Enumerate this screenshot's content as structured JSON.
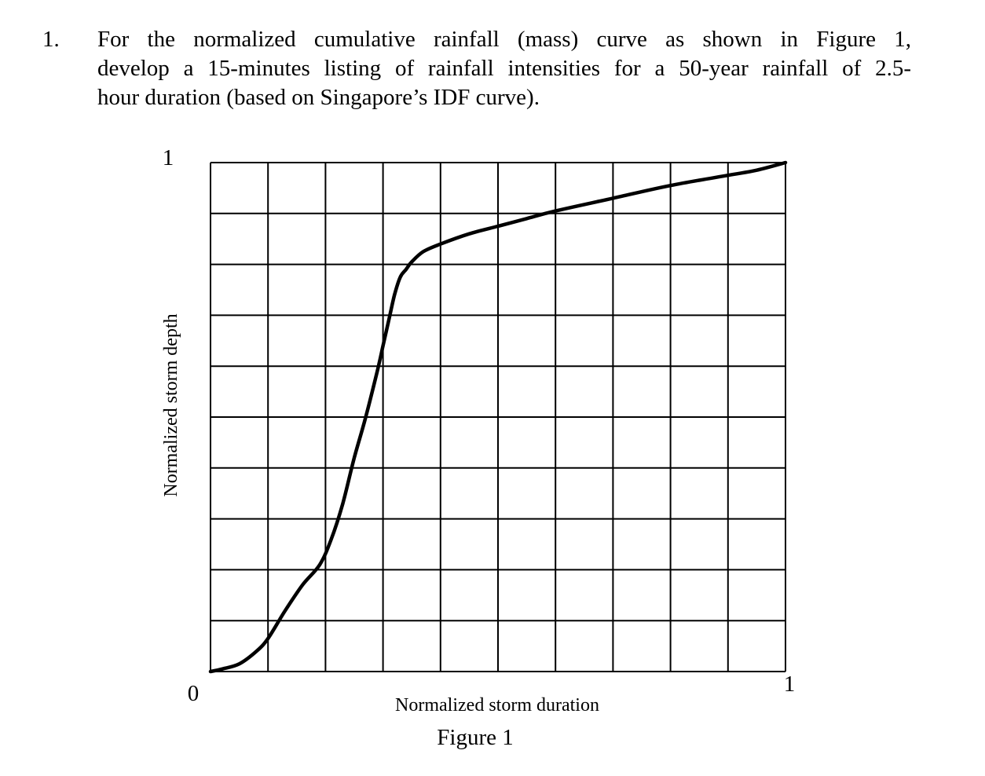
{
  "question": {
    "number": "1.",
    "lines": [
      "For the normalized cumulative rainfall (mass) curve as shown in Figure 1,",
      "develop a 15-minutes listing of rainfall intensities for a 50-year rainfall of 2.5-",
      "hour duration (based on Singapore’s IDF curve)."
    ]
  },
  "figure": {
    "caption": "Figure 1"
  },
  "chart_data": {
    "type": "line",
    "title": "",
    "xlabel": "Normalized storm duration",
    "ylabel": "Normalized storm depth",
    "xlim": [
      0,
      1
    ],
    "ylim": [
      0,
      1
    ],
    "grid": true,
    "grid_divisions": {
      "x": 10,
      "y": 10
    },
    "tick_labels": {
      "x_min": "0",
      "x_max": "1",
      "y_max": "1"
    },
    "series": [
      {
        "x": [
          0,
          0.02,
          0.05,
          0.08,
          0.1,
          0.13,
          0.16,
          0.19,
          0.21,
          0.23,
          0.25,
          0.27,
          0.29,
          0.3,
          0.31,
          0.32,
          0.33,
          0.34,
          0.35,
          0.37,
          0.4,
          0.45,
          0.5,
          0.55,
          0.6,
          0.7,
          0.8,
          0.9,
          0.95,
          1.0
        ],
        "y": [
          0,
          0.005,
          0.015,
          0.04,
          0.065,
          0.12,
          0.17,
          0.21,
          0.26,
          0.33,
          0.42,
          0.5,
          0.59,
          0.64,
          0.69,
          0.74,
          0.775,
          0.79,
          0.805,
          0.825,
          0.84,
          0.86,
          0.875,
          0.89,
          0.905,
          0.93,
          0.955,
          0.975,
          0.985,
          1.0
        ]
      }
    ]
  }
}
